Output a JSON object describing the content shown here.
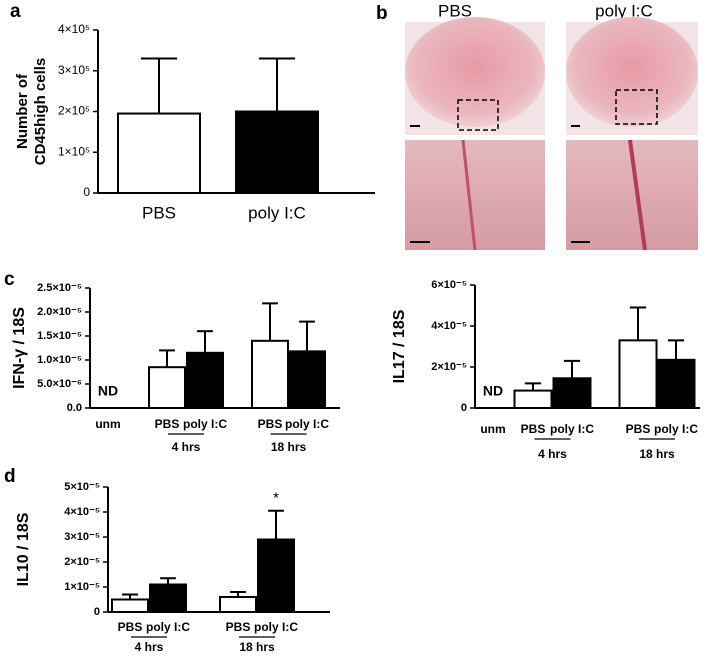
{
  "figure": {
    "panel_labels": [
      "a",
      "b",
      "c",
      "d"
    ],
    "image_titles": [
      "PBS",
      "poly I:C"
    ]
  },
  "chart_data": [
    {
      "type": "bar",
      "ylabel": [
        "Number of",
        "CD45high cells"
      ],
      "categories": [
        "PBS",
        "poly I:C"
      ],
      "values": [
        195000,
        200000
      ],
      "errors": [
        135000,
        130000
      ],
      "colors": [
        "#ffffff",
        "#000000"
      ],
      "ylim": [
        0,
        400000
      ],
      "yticks": [
        0,
        {
          "value": 100000,
          "label": "1×10⁵"
        },
        {
          "value": 200000,
          "label": "2×10⁵"
        },
        {
          "value": 300000,
          "label": "3×10⁵"
        },
        {
          "value": 400000,
          "label": "4×10⁵"
        }
      ]
    },
    {
      "type": "bar",
      "ylabel": "IFN-γ / 18S",
      "categories": [
        "unm",
        "PBS",
        "poly I:C",
        "PBS",
        "poly I:C"
      ],
      "values": [
        null,
        8.5e-06,
        1.15e-05,
        1.4e-05,
        1.18e-05
      ],
      "errors": [
        null,
        3.5e-06,
        4.5e-06,
        7.8e-06,
        6.2e-06
      ],
      "value_labels": [
        "ND",
        null,
        null,
        null,
        null
      ],
      "colors": [
        null,
        "#ffffff",
        "#000000",
        "#ffffff",
        "#000000"
      ],
      "groups": [
        "4 hrs",
        "18 hrs"
      ],
      "ylim": [
        0,
        2.5e-05
      ],
      "yticks": [
        {
          "value": 0,
          "label": "0.0"
        },
        {
          "value": 5e-06,
          "label": "5.0×10⁻⁶"
        },
        {
          "value": 1e-05,
          "label": "1.0×10⁻⁵"
        },
        {
          "value": 1.5e-05,
          "label": "1.5×10⁻⁵"
        },
        {
          "value": 2e-05,
          "label": "2.0×10⁻⁵"
        },
        {
          "value": 2.5e-05,
          "label": "2.5×10⁻⁵"
        }
      ]
    },
    {
      "type": "bar",
      "ylabel": "IL17 / 18S",
      "categories": [
        "unm",
        "PBS",
        "poly I:C",
        "PBS",
        "poly I:C"
      ],
      "values": [
        null,
        8.5e-06,
        1.45e-05,
        3.3e-05,
        2.35e-05
      ],
      "errors": [
        null,
        3.5e-06,
        8.5e-06,
        1.6e-05,
        9.5e-06
      ],
      "value_labels": [
        "ND",
        null,
        null,
        null,
        null
      ],
      "colors": [
        null,
        "#ffffff",
        "#000000",
        "#ffffff",
        "#000000"
      ],
      "groups": [
        "4 hrs",
        "18 hrs"
      ],
      "ylim": [
        0,
        6e-05
      ],
      "yticks": [
        0,
        {
          "value": 2e-05,
          "label": "2×10⁻⁵"
        },
        {
          "value": 4e-05,
          "label": "4×10⁻⁵"
        },
        {
          "value": 6e-05,
          "label": "6×10⁻⁵"
        }
      ]
    },
    {
      "type": "bar",
      "ylabel": "IL10 / 18S",
      "categories": [
        "PBS",
        "poly I:C",
        "PBS",
        "poly I:C"
      ],
      "values": [
        5e-06,
        1.1e-05,
        6e-06,
        2.9e-05
      ],
      "errors": [
        2e-06,
        2.5e-06,
        2e-06,
        1.15e-05
      ],
      "colors": [
        "#ffffff",
        "#000000",
        "#ffffff",
        "#000000"
      ],
      "groups": [
        "4 hrs",
        "18 hrs"
      ],
      "annotation": {
        "text": "*",
        "index": 3
      },
      "ylim": [
        0,
        5e-05
      ],
      "yticks": [
        0,
        {
          "value": 1e-05,
          "label": "1×10⁻⁵"
        },
        {
          "value": 2e-05,
          "label": "2×10⁻⁵"
        },
        {
          "value": 3e-05,
          "label": "3×10⁻⁵"
        },
        {
          "value": 4e-05,
          "label": "4×10⁻⁵"
        },
        {
          "value": 5e-05,
          "label": "5×10⁻⁵"
        }
      ]
    }
  ]
}
